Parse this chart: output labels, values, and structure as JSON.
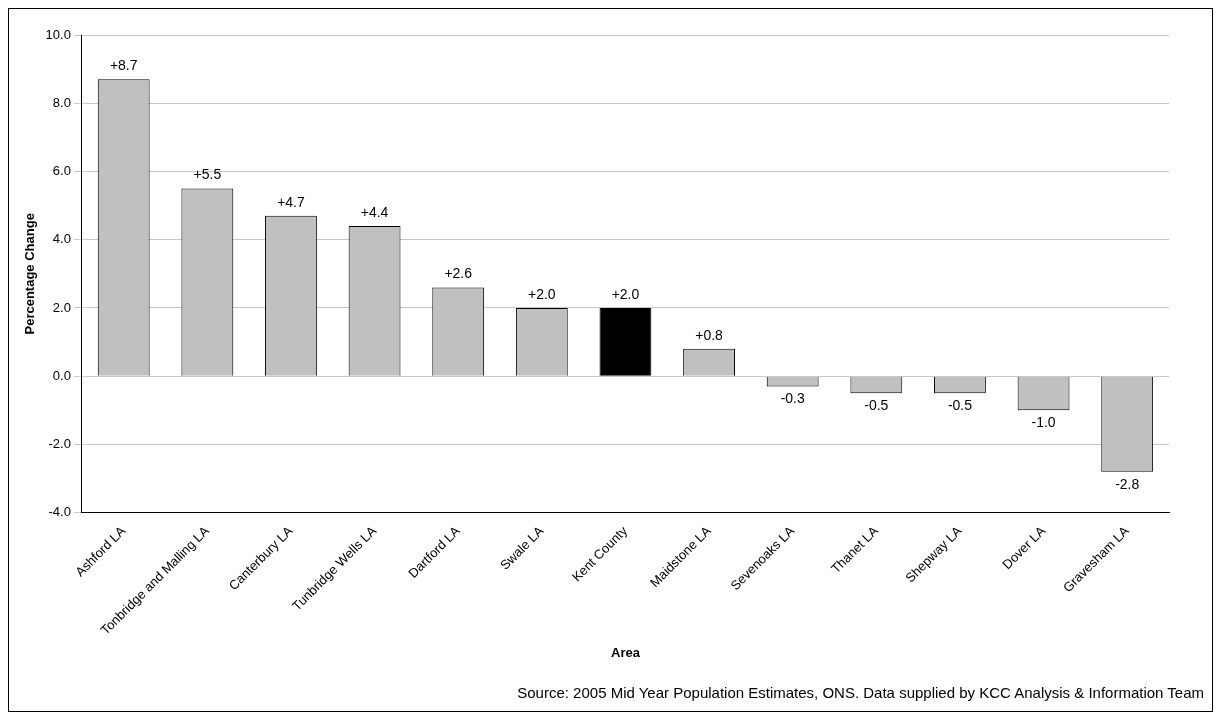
{
  "chart_data": {
    "type": "bar",
    "xlabel": "Area",
    "ylabel": "Percentage Change",
    "categories": [
      "Ashford LA",
      "Tonbridge and Malling LA",
      "Canterbury LA",
      "Tunbridge Wells LA",
      "Dartford LA",
      "Swale LA",
      "Kent County",
      "Maidstone LA",
      "Sevenoaks LA",
      "Thanet LA",
      "Shepway LA",
      "Dover LA",
      "Gravesham LA"
    ],
    "values": [
      8.7,
      5.5,
      4.7,
      4.4,
      2.6,
      2.0,
      2.0,
      0.8,
      -0.3,
      -0.5,
      -0.5,
      -1.0,
      -2.8
    ],
    "colors": [
      "#c0c0c0",
      "#c0c0c0",
      "#c0c0c0",
      "#c0c0c0",
      "#c0c0c0",
      "#c0c0c0",
      "#000000",
      "#c0c0c0",
      "#c0c0c0",
      "#c0c0c0",
      "#c0c0c0",
      "#c0c0c0",
      "#c0c0c0"
    ],
    "value_labels": [
      "+8.7",
      "+5.5",
      "+4.7",
      "+4.4",
      "+2.6",
      "+2.0",
      "+2.0",
      "+0.8",
      "-0.3",
      "-0.5",
      "-0.5",
      "-1.0",
      "-2.8"
    ],
    "ylim": [
      -4,
      10
    ],
    "yticks": [
      {
        "value": -4,
        "label": "-4.0"
      },
      {
        "value": -2,
        "label": "-2.0"
      },
      {
        "value": 0,
        "label": "0.0"
      },
      {
        "value": 2,
        "label": "2.0"
      },
      {
        "value": 4,
        "label": "4.0"
      },
      {
        "value": 6,
        "label": "6.0"
      },
      {
        "value": 8,
        "label": "8.0"
      },
      {
        "value": 10,
        "label": "10.0"
      }
    ],
    "grid": "y",
    "legend": false,
    "annotations": [
      "Source: 2005 Mid Year Population Estimates, ONS. Data supplied by KCC Analysis & Information Team"
    ]
  }
}
